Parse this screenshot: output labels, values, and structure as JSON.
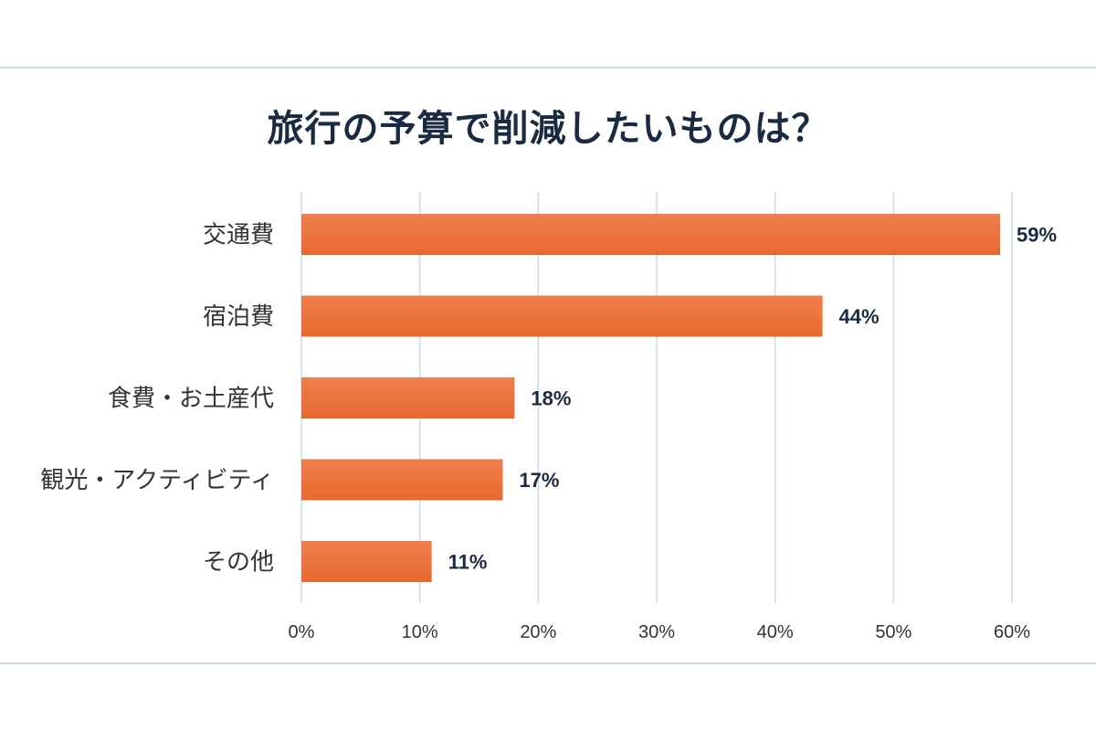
{
  "colors": {
    "bar": "#e8692e",
    "bar_light": "#ef7f4e",
    "grid": "#c9dde9",
    "title": "#1a2a40",
    "label": "#333333",
    "value_label": "#1a2a40",
    "tick": "#333333"
  },
  "chart_data": {
    "type": "bar",
    "orientation": "horizontal",
    "title": "旅行の予算で削減したいものは？",
    "categories": [
      "交通費",
      "宿泊費",
      "食費・お土産代",
      "観光・アクティビティ",
      "その他"
    ],
    "values": [
      59,
      44,
      18,
      17,
      11
    ],
    "value_labels": [
      "59%",
      "44%",
      "18%",
      "17%",
      "11%"
    ],
    "xlim": [
      0,
      60
    ],
    "xticks": [
      0,
      10,
      20,
      30,
      40,
      50,
      60
    ],
    "xtick_labels": [
      "0%",
      "10%",
      "20%",
      "30%",
      "40%",
      "50%",
      "60%"
    ],
    "grid": true,
    "legend": "none"
  }
}
